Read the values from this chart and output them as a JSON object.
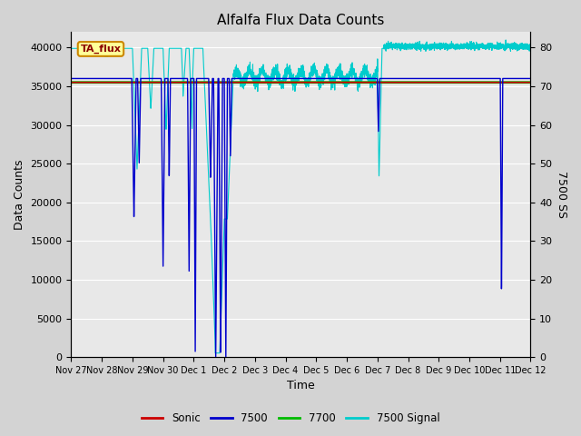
{
  "title": "Alfalfa Flux Data Counts",
  "xlabel": "Time",
  "ylabel_left": "Data Counts",
  "ylabel_right": "7500 SS",
  "ylim_left": [
    0,
    42000
  ],
  "ylim_right": [
    0,
    84
  ],
  "xtick_labels": [
    "Nov 27",
    "Nov 28",
    "Nov 29",
    "Nov 30",
    "Dec 1",
    "Dec 2",
    "Dec 3",
    "Dec 4",
    "Dec 5",
    "Dec 6",
    "Dec 7",
    "Dec 8",
    "Dec 9",
    "Dec 10",
    "Dec 11",
    "Dec 12"
  ],
  "xtick_positions": [
    0,
    1,
    2,
    3,
    4,
    5,
    6,
    7,
    8,
    9,
    10,
    11,
    12,
    13,
    14,
    15
  ],
  "ytick_left": [
    0,
    5000,
    10000,
    15000,
    20000,
    25000,
    30000,
    35000,
    40000
  ],
  "ytick_right": [
    0,
    10,
    20,
    30,
    40,
    50,
    60,
    70,
    80
  ],
  "background_color": "#d3d3d3",
  "plot_bg_color": "#e8e8e8",
  "sonic_color": "#cc0000",
  "sensor7500_color": "#0000cc",
  "sensor7700_color": "#00bb00",
  "signal7500_color": "#00cccc",
  "legend_label": "TA_flux",
  "legend_bg": "#ffff99",
  "legend_border": "#cc8800",
  "sensor7700_value": 35500,
  "scale_factor": 525.0
}
